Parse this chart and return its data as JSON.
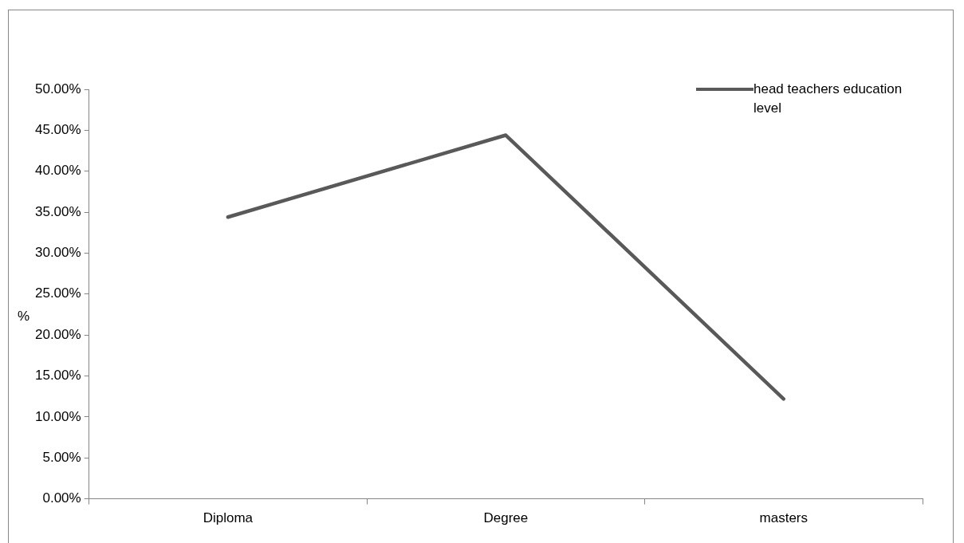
{
  "chart_data": {
    "type": "line",
    "ylabel": "%",
    "categories": [
      "Diploma",
      "Degree",
      "masters"
    ],
    "series": [
      {
        "name": "head teachers education level",
        "color": "#595959",
        "values": [
          34.4,
          44.4,
          12.2
        ]
      }
    ],
    "ylim": [
      0,
      50
    ],
    "yticks": [
      {
        "value": 0,
        "label": "0.00%"
      },
      {
        "value": 5,
        "label": "5.00%"
      },
      {
        "value": 10,
        "label": "10.00%"
      },
      {
        "value": 15,
        "label": "15.00%"
      },
      {
        "value": 20,
        "label": "20.00%"
      },
      {
        "value": 25,
        "label": "25.00%"
      },
      {
        "value": 30,
        "label": "30.00%"
      },
      {
        "value": 35,
        "label": "35.00%"
      },
      {
        "value": 40,
        "label": "40.00%"
      },
      {
        "value": 45,
        "label": "45.00%"
      },
      {
        "value": 50,
        "label": "50.00%"
      }
    ],
    "grid": false,
    "legend": "top right",
    "marker": "none",
    "line_style": "solid"
  }
}
